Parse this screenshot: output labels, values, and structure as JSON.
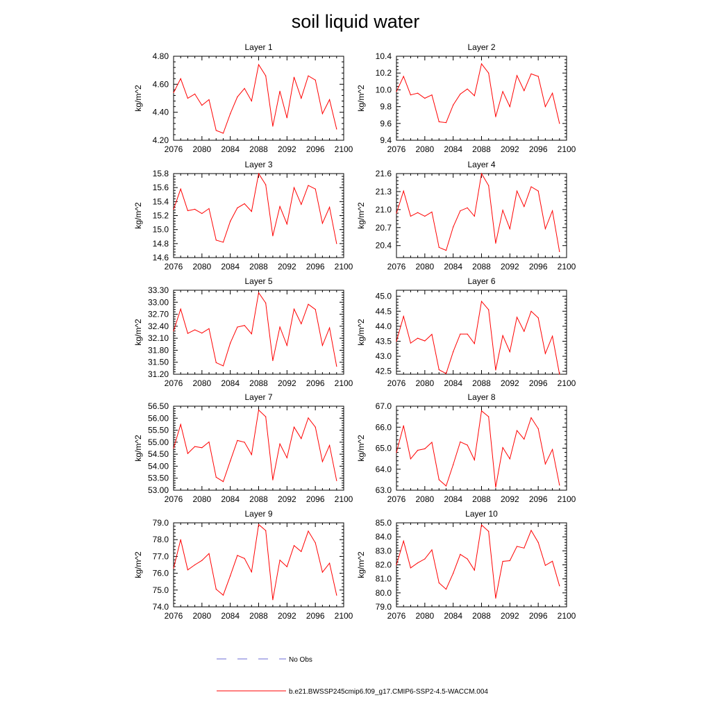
{
  "title": "soil liquid water",
  "legend": [
    {
      "label": "No Obs",
      "color": "#6b6bd6",
      "style": "dashed"
    },
    {
      "label": "b.e21.BWSSP245cmip6.f09_g17.CMIP6-SSP2-4.5-WACCM.004",
      "color": "#ff0000",
      "style": "solid"
    }
  ],
  "chart_data": [
    {
      "type": "line",
      "title": "Layer 1",
      "ylabel": "kg/m^2",
      "xlim": [
        2076,
        2100
      ],
      "ylim": [
        4.2,
        4.8
      ],
      "xticks": [
        2076,
        2080,
        2084,
        2088,
        2092,
        2096,
        2100
      ],
      "yticks": [
        "4.20",
        "4.40",
        "4.60",
        "4.80"
      ],
      "x": [
        2076,
        2077,
        2078,
        2079,
        2080,
        2081,
        2082,
        2083,
        2084,
        2085,
        2086,
        2087,
        2088,
        2089,
        2090,
        2091,
        2092,
        2093,
        2094,
        2095,
        2096,
        2097,
        2098,
        2099
      ],
      "series": [
        {
          "name": "b.e21.BWSSP245cmip6.f09_g17.CMIP6-SSP2-4.5-WACCM.004",
          "color": "#ff0000",
          "values": [
            4.54,
            4.64,
            4.5,
            4.53,
            4.45,
            4.49,
            4.27,
            4.25,
            4.39,
            4.51,
            4.57,
            4.48,
            4.74,
            4.66,
            4.3,
            4.55,
            4.36,
            4.65,
            4.5,
            4.66,
            4.63,
            4.39,
            4.49,
            4.28
          ]
        }
      ]
    },
    {
      "type": "line",
      "title": "Layer 2",
      "ylabel": "kg/m^2",
      "xlim": [
        2076,
        2100
      ],
      "ylim": [
        9.4,
        10.4
      ],
      "xticks": [
        2076,
        2080,
        2084,
        2088,
        2092,
        2096,
        2100
      ],
      "yticks": [
        "9.4",
        "9.6",
        "9.8",
        "10.0",
        "10.2",
        "10.4"
      ],
      "x": [
        2076,
        2077,
        2078,
        2079,
        2080,
        2081,
        2082,
        2083,
        2084,
        2085,
        2086,
        2087,
        2088,
        2089,
        2090,
        2091,
        2092,
        2093,
        2094,
        2095,
        2096,
        2097,
        2098,
        2099
      ],
      "series": [
        {
          "name": "b.e21.BWSSP245cmip6.f09_g17.CMIP6-SSP2-4.5-WACCM.004",
          "color": "#ff0000",
          "values": [
            9.98,
            10.16,
            9.94,
            9.96,
            9.9,
            9.94,
            9.62,
            9.61,
            9.82,
            9.95,
            10.01,
            9.93,
            10.31,
            10.2,
            9.68,
            9.98,
            9.8,
            10.17,
            9.99,
            10.19,
            10.16,
            9.8,
            9.96,
            9.6
          ]
        }
      ]
    },
    {
      "type": "line",
      "title": "Layer 3",
      "ylabel": "kg/m^2",
      "xlim": [
        2076,
        2100
      ],
      "ylim": [
        14.6,
        15.8
      ],
      "xticks": [
        2076,
        2080,
        2084,
        2088,
        2092,
        2096,
        2100
      ],
      "yticks": [
        "14.6",
        "14.8",
        "15.0",
        "15.2",
        "15.4",
        "15.6",
        "15.8"
      ],
      "x": [
        2076,
        2077,
        2078,
        2079,
        2080,
        2081,
        2082,
        2083,
        2084,
        2085,
        2086,
        2087,
        2088,
        2089,
        2090,
        2091,
        2092,
        2093,
        2094,
        2095,
        2096,
        2097,
        2098,
        2099
      ],
      "series": [
        {
          "name": "b.e21.BWSSP245cmip6.f09_g17.CMIP6-SSP2-4.5-WACCM.004",
          "color": "#ff0000",
          "values": [
            15.29,
            15.58,
            15.27,
            15.29,
            15.23,
            15.3,
            14.85,
            14.82,
            15.12,
            15.31,
            15.37,
            15.26,
            15.8,
            15.64,
            14.91,
            15.33,
            15.08,
            15.6,
            15.36,
            15.63,
            15.58,
            15.09,
            15.32,
            14.8
          ]
        }
      ]
    },
    {
      "type": "line",
      "title": "Layer 4",
      "ylabel": "kg/m^2",
      "xlim": [
        2076,
        2100
      ],
      "ylim": [
        20.2,
        21.6
      ],
      "xticks": [
        2076,
        2080,
        2084,
        2088,
        2092,
        2096,
        2100
      ],
      "yticks": [
        "20.4",
        "20.7",
        "21.0",
        "21.3",
        "21.6"
      ],
      "x": [
        2076,
        2077,
        2078,
        2079,
        2080,
        2081,
        2082,
        2083,
        2084,
        2085,
        2086,
        2087,
        2088,
        2089,
        2090,
        2091,
        2092,
        2093,
        2094,
        2095,
        2096,
        2097,
        2098,
        2099
      ],
      "series": [
        {
          "name": "b.e21.BWSSP245cmip6.f09_g17.CMIP6-SSP2-4.5-WACCM.004",
          "color": "#ff0000",
          "values": [
            20.94,
            21.31,
            20.89,
            20.95,
            20.89,
            20.96,
            20.37,
            20.32,
            20.71,
            20.98,
            21.03,
            20.89,
            21.6,
            21.4,
            20.44,
            20.99,
            20.68,
            21.31,
            21.05,
            21.38,
            21.31,
            20.68,
            20.98,
            20.3
          ]
        }
      ]
    },
    {
      "type": "line",
      "title": "Layer 5",
      "ylabel": "kg/m^2",
      "xlim": [
        2076,
        2100
      ],
      "ylim": [
        31.2,
        33.3
      ],
      "xticks": [
        2076,
        2080,
        2084,
        2088,
        2092,
        2096,
        2100
      ],
      "yticks": [
        "31.20",
        "31.50",
        "31.80",
        "32.10",
        "32.40",
        "32.70",
        "33.00",
        "33.30"
      ],
      "x": [
        2076,
        2077,
        2078,
        2079,
        2080,
        2081,
        2082,
        2083,
        2084,
        2085,
        2086,
        2087,
        2088,
        2089,
        2090,
        2091,
        2092,
        2093,
        2094,
        2095,
        2096,
        2097,
        2098,
        2099
      ],
      "series": [
        {
          "name": "b.e21.BWSSP245cmip6.f09_g17.CMIP6-SSP2-4.5-WACCM.004",
          "color": "#ff0000",
          "values": [
            32.28,
            32.83,
            32.22,
            32.31,
            32.23,
            32.34,
            31.49,
            31.41,
            31.98,
            32.38,
            32.42,
            32.21,
            33.24,
            32.98,
            31.54,
            32.38,
            31.92,
            32.83,
            32.46,
            32.95,
            32.82,
            31.92,
            32.36,
            31.4
          ]
        }
      ]
    },
    {
      "type": "line",
      "title": "Layer 6",
      "ylabel": "kg/m^2",
      "xlim": [
        2076,
        2100
      ],
      "ylim": [
        42.4,
        45.2
      ],
      "xticks": [
        2076,
        2080,
        2084,
        2088,
        2092,
        2096,
        2100
      ],
      "yticks": [
        "42.5",
        "43.0",
        "43.5",
        "44.0",
        "44.5",
        "45.0"
      ],
      "x": [
        2076,
        2077,
        2078,
        2079,
        2080,
        2081,
        2082,
        2083,
        2084,
        2085,
        2086,
        2087,
        2088,
        2089,
        2090,
        2091,
        2092,
        2093,
        2094,
        2095,
        2096,
        2097,
        2098,
        2099
      ],
      "series": [
        {
          "name": "b.e21.BWSSP245cmip6.f09_g17.CMIP6-SSP2-4.5-WACCM.004",
          "color": "#ff0000",
          "values": [
            43.5,
            44.33,
            43.44,
            43.6,
            43.51,
            43.73,
            42.55,
            42.42,
            43.15,
            43.74,
            43.74,
            43.42,
            44.83,
            44.55,
            42.54,
            43.69,
            43.15,
            44.3,
            43.83,
            44.5,
            44.28,
            43.09,
            43.67,
            42.4
          ]
        }
      ]
    },
    {
      "type": "line",
      "title": "Layer 7",
      "ylabel": "kg/m^2",
      "xlim": [
        2076,
        2100
      ],
      "ylim": [
        53.0,
        56.5
      ],
      "xticks": [
        2076,
        2080,
        2084,
        2088,
        2092,
        2096,
        2100
      ],
      "yticks": [
        "53.00",
        "53.50",
        "54.00",
        "54.50",
        "55.00",
        "55.50",
        "56.00",
        "56.50"
      ],
      "x": [
        2076,
        2077,
        2078,
        2079,
        2080,
        2081,
        2082,
        2083,
        2084,
        2085,
        2086,
        2087,
        2088,
        2089,
        2090,
        2091,
        2092,
        2093,
        2094,
        2095,
        2096,
        2097,
        2098,
        2099
      ],
      "series": [
        {
          "name": "b.e21.BWSSP245cmip6.f09_g17.CMIP6-SSP2-4.5-WACCM.004",
          "color": "#ff0000",
          "values": [
            54.75,
            55.74,
            54.53,
            54.82,
            54.77,
            55.01,
            53.54,
            53.36,
            54.22,
            55.07,
            55.0,
            54.48,
            56.34,
            56.06,
            53.43,
            54.93,
            54.35,
            55.63,
            55.15,
            56.01,
            55.63,
            54.19,
            54.87,
            53.4
          ]
        }
      ]
    },
    {
      "type": "line",
      "title": "Layer 8",
      "ylabel": "kg/m^2",
      "xlim": [
        2076,
        2100
      ],
      "ylim": [
        63.0,
        67.0
      ],
      "xticks": [
        2076,
        2080,
        2084,
        2088,
        2092,
        2096,
        2100
      ],
      "yticks": [
        "63.0",
        "64.0",
        "65.0",
        "66.0",
        "67.0"
      ],
      "x": [
        2076,
        2077,
        2078,
        2079,
        2080,
        2081,
        2082,
        2083,
        2084,
        2085,
        2086,
        2087,
        2088,
        2089,
        2090,
        2091,
        2092,
        2093,
        2094,
        2095,
        2096,
        2097,
        2098,
        2099
      ],
      "series": [
        {
          "name": "b.e21.BWSSP245cmip6.f09_g17.CMIP6-SSP2-4.5-WACCM.004",
          "color": "#ff0000",
          "values": [
            64.8,
            66.07,
            64.49,
            64.9,
            64.97,
            65.28,
            63.5,
            63.2,
            64.22,
            65.3,
            65.15,
            64.44,
            66.78,
            66.5,
            63.14,
            65.03,
            64.49,
            65.84,
            65.43,
            66.45,
            65.93,
            64.25,
            64.94,
            63.24
          ]
        }
      ]
    },
    {
      "type": "line",
      "title": "Layer 9",
      "ylabel": "kg/m^2",
      "xlim": [
        2076,
        2100
      ],
      "ylim": [
        74.0,
        79.0
      ],
      "xticks": [
        2076,
        2080,
        2084,
        2088,
        2092,
        2096,
        2100
      ],
      "yticks": [
        "74.0",
        "75.0",
        "76.0",
        "77.0",
        "78.0",
        "79.0"
      ],
      "x": [
        2076,
        2077,
        2078,
        2079,
        2080,
        2081,
        2082,
        2083,
        2084,
        2085,
        2086,
        2087,
        2088,
        2089,
        2090,
        2091,
        2092,
        2093,
        2094,
        2095,
        2096,
        2097,
        2098,
        2099
      ],
      "series": [
        {
          "name": "b.e21.BWSSP245cmip6.f09_g17.CMIP6-SSP2-4.5-WACCM.004",
          "color": "#ff0000",
          "values": [
            76.3,
            78.0,
            76.2,
            76.5,
            76.76,
            77.17,
            75.05,
            74.7,
            75.85,
            77.06,
            76.88,
            76.08,
            78.9,
            78.54,
            74.42,
            76.78,
            76.39,
            77.65,
            77.29,
            78.51,
            77.81,
            76.06,
            76.6,
            74.7
          ]
        }
      ]
    },
    {
      "type": "line",
      "title": "Layer 10",
      "ylabel": "kg/m^2",
      "xlim": [
        2076,
        2100
      ],
      "ylim": [
        79.0,
        85.0
      ],
      "xticks": [
        2076,
        2080,
        2084,
        2088,
        2092,
        2096,
        2100
      ],
      "yticks": [
        "79.0",
        "80.0",
        "81.0",
        "82.0",
        "83.0",
        "84.0",
        "85.0"
      ],
      "x": [
        2076,
        2077,
        2078,
        2079,
        2080,
        2081,
        2082,
        2083,
        2084,
        2085,
        2086,
        2087,
        2088,
        2089,
        2090,
        2091,
        2092,
        2093,
        2094,
        2095,
        2096,
        2097,
        2098,
        2099
      ],
      "series": [
        {
          "name": "b.e21.BWSSP245cmip6.f09_g17.CMIP6-SSP2-4.5-WACCM.004",
          "color": "#ff0000",
          "values": [
            82.0,
            83.7,
            81.78,
            82.14,
            82.42,
            83.07,
            80.71,
            80.26,
            81.4,
            82.75,
            82.42,
            81.62,
            84.85,
            84.39,
            79.62,
            82.25,
            82.3,
            83.32,
            83.2,
            84.46,
            83.6,
            81.96,
            82.26,
            80.5
          ]
        }
      ]
    }
  ]
}
